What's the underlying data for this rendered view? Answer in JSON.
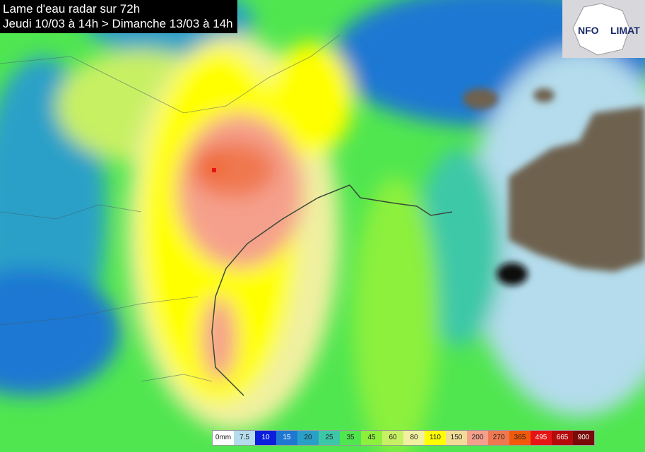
{
  "header": {
    "title": "Lame d'eau radar sur 72h",
    "subtitle": "Jeudi 10/03 à 14h > Dimanche 13/03 à 14h"
  },
  "logo": {
    "left": "NFO",
    "right": "LIMAT"
  },
  "legend": {
    "labels": [
      "0mm",
      "7.5",
      "10",
      "15",
      "20",
      "25",
      "35",
      "45",
      "60",
      "80",
      "110",
      "150",
      "200",
      "270",
      "365",
      "495",
      "665",
      "900"
    ],
    "colors": [
      "#ffffff",
      "#b4dcec",
      "#0a1edc",
      "#1e78d2",
      "#2aa0c8",
      "#3cc8a8",
      "#50e650",
      "#8cf03c",
      "#c8f064",
      "#f0f0a0",
      "#ffff00",
      "#f0dc96",
      "#f5a08c",
      "#f07850",
      "#f05a0a",
      "#e61414",
      "#b40a0a",
      "#780a0a"
    ]
  }
}
